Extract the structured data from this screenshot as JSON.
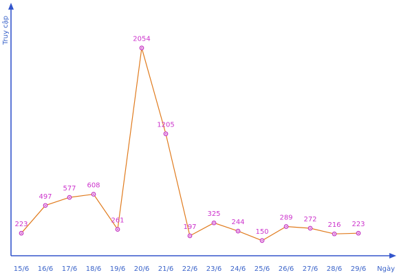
{
  "chart_data": {
    "type": "line",
    "title": "",
    "xlabel": "Ngày",
    "ylabel": "Truy cập",
    "categories": [
      "15/6",
      "16/6",
      "17/6",
      "18/6",
      "19/6",
      "20/6",
      "21/6",
      "22/6",
      "23/6",
      "24/6",
      "25/6",
      "26/6",
      "27/6",
      "28/6",
      "29/6"
    ],
    "series": [
      {
        "values": [
          223,
          497,
          577,
          608,
          261,
          2054,
          1205,
          197,
          325,
          244,
          150,
          289,
          272,
          216,
          223
        ]
      }
    ],
    "data_labels": [
      "223",
      "497",
      "577",
      "608",
      "261",
      "2054",
      "1205",
      "197",
      "325",
      "244",
      "150",
      "289",
      "272",
      "216",
      "223"
    ],
    "ylim": [
      0,
      2400
    ],
    "grid": false,
    "legend": "none",
    "colors": {
      "axis": "#3355cc",
      "text": "#3a63c9",
      "line": "#e07a1c",
      "marker": "#c02fc0",
      "marker_fill": "#f6d2f2",
      "label": "#cc33cc"
    }
  }
}
